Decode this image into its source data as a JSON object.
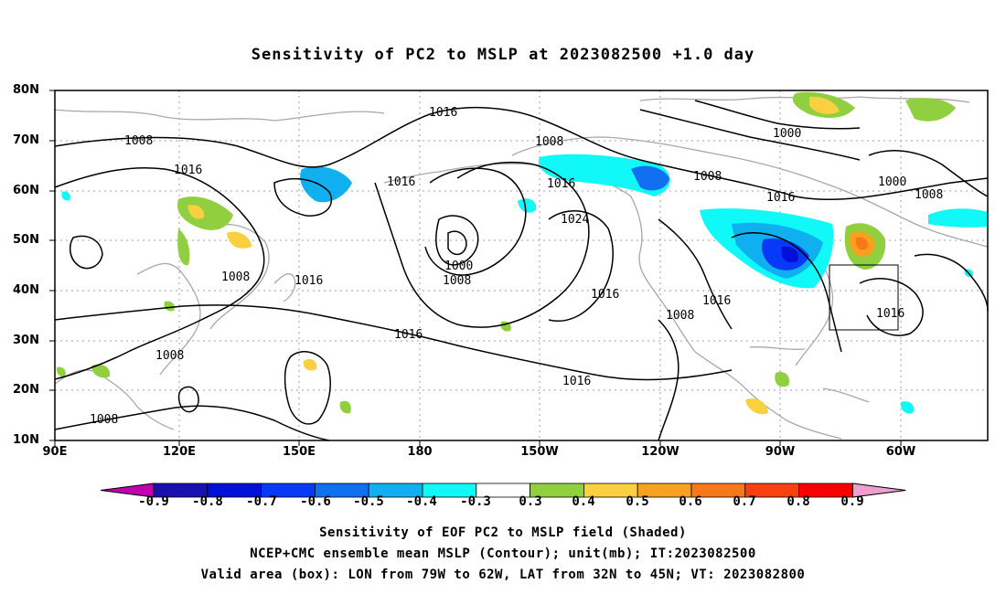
{
  "title": "Sensitivity of PC2 to MSLP at 2023082500 +1.0 day",
  "lat_labels": [
    "80N",
    "70N",
    "60N",
    "50N",
    "40N",
    "30N",
    "20N",
    "10N"
  ],
  "lon_labels": [
    "90E",
    "120E",
    "150E",
    "180",
    "150W",
    "120W",
    "90W",
    "60W"
  ],
  "contour_labels": [
    "1016",
    "1008",
    "1016",
    "1016",
    "1008",
    "1008",
    "1000",
    "1008",
    "1024",
    "1016",
    "1008",
    "1016",
    "1016",
    "1008",
    "1016",
    "1016",
    "1008",
    "1016",
    "1008",
    "1000",
    "1008",
    "1016",
    "1016"
  ],
  "colorbar": {
    "ticks": [
      "-0.9",
      "-0.8",
      "-0.7",
      "-0.6",
      "-0.5",
      "-0.4",
      "-0.3",
      "0.3",
      "0.4",
      "0.5",
      "0.6",
      "0.7",
      "0.8",
      "0.9"
    ],
    "colors": [
      "#c000b0",
      "#1a10b0",
      "#0010d8",
      "#0838f8",
      "#1070f0",
      "#10b0f0",
      "#10f8f8",
      "#ffffff",
      "#90d040",
      "#f8d040",
      "#f8a020",
      "#f87818",
      "#f84010",
      "#f80000",
      "#f0a0d0"
    ]
  },
  "valid_box": {
    "lon_range": "79W to 62W",
    "lat_range": "32N to 45N"
  },
  "captions": [
    "Sensitivity of EOF PC2 to MSLP field (Shaded)",
    "NCEP+CMC ensemble mean MSLP (Contour); unit(mb); IT:2023082500",
    "Valid area (box): LON from 79W to 62W, LAT from 32N to 45N; VT: 2023082800"
  ]
}
